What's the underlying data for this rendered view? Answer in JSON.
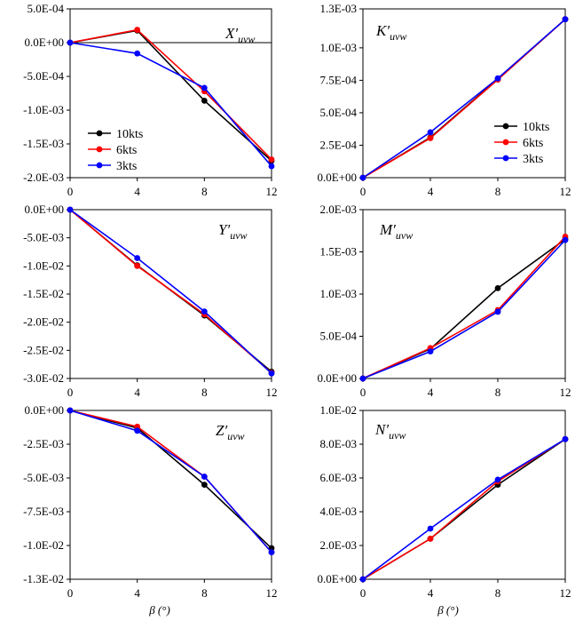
{
  "colors": {
    "10kts": "#000000",
    "6kts": "#ff0000",
    "3kts": "#0000ff"
  },
  "chart_data": [
    {
      "type": "line",
      "title": "X′",
      "title_sub": "uvw",
      "x": [
        0,
        4,
        8,
        12
      ],
      "xticks": [
        "0",
        "4",
        "8",
        "12"
      ],
      "ylim": [
        -0.002,
        0.0005
      ],
      "yticks": [
        0.0005,
        0.0,
        -0.0005,
        -0.001,
        -0.0015,
        -0.002
      ],
      "ytick_labels": [
        "5.0E-04",
        "0.0E+00",
        "-5.0E-04",
        "-1.0E-03",
        "-1.5E-03",
        "-2.0E-03"
      ],
      "legend": [
        "10kts",
        "6kts",
        "3kts"
      ],
      "legend_position": "lower-left",
      "series": [
        {
          "name": "10kts",
          "values": [
            0.0,
            0.00018,
            -0.00086,
            -0.00175
          ]
        },
        {
          "name": "6kts",
          "values": [
            0.0,
            0.00019,
            -0.00072,
            -0.00173
          ]
        },
        {
          "name": "3kts",
          "values": [
            0.0,
            -0.00016,
            -0.00067,
            -0.00183
          ]
        }
      ]
    },
    {
      "type": "line",
      "title": "K′",
      "title_sub": "uvw",
      "x": [
        0,
        4,
        8,
        12
      ],
      "xticks": [
        "0",
        "4",
        "8",
        "12"
      ],
      "ylim": [
        0.0,
        0.0013
      ],
      "yticks": [
        0.0013,
        0.001,
        0.00075,
        0.0005,
        0.00025,
        0.0
      ],
      "ytick_labels": [
        "1.3E-03",
        "1.0E-03",
        "7.5E-04",
        "5.0E-04",
        "2.5E-04",
        "0.0E+00"
      ],
      "legend": [
        "10kts",
        "6kts",
        "3kts"
      ],
      "legend_position": "lower-right",
      "series": [
        {
          "name": "10kts",
          "values": [
            0.0,
            0.00031,
            0.00076,
            0.00122
          ]
        },
        {
          "name": "6kts",
          "values": [
            0.0,
            0.000305,
            0.000755,
            0.00122
          ]
        },
        {
          "name": "3kts",
          "values": [
            0.0,
            0.00035,
            0.000765,
            0.00122
          ]
        }
      ]
    },
    {
      "type": "line",
      "title": "Y′",
      "title_sub": "uvw",
      "x": [
        0,
        4,
        8,
        12
      ],
      "xticks": [
        "0",
        "4",
        "8",
        "12"
      ],
      "ylim": [
        -0.03,
        0.0
      ],
      "yticks": [
        0.0,
        -0.005,
        -0.01,
        -0.015,
        -0.02,
        -0.025,
        -0.03
      ],
      "ytick_labels": [
        "0.0E+00",
        "-5.0E-03",
        "-1.0E-02",
        "-1.5E-02",
        "-2.0E-02",
        "-2.5E-02",
        "-3.0E-02"
      ],
      "series": [
        {
          "name": "10kts",
          "values": [
            0.0,
            -0.0099,
            -0.0188,
            -0.0288
          ]
        },
        {
          "name": "6kts",
          "values": [
            0.0,
            -0.01,
            -0.0186,
            -0.029
          ]
        },
        {
          "name": "3kts",
          "values": [
            0.0,
            -0.0086,
            -0.0181,
            -0.0291
          ]
        }
      ]
    },
    {
      "type": "line",
      "title": "M′",
      "title_sub": "uvw",
      "x": [
        0,
        4,
        8,
        12
      ],
      "xticks": [
        "0",
        "4",
        "8",
        "12"
      ],
      "ylim": [
        0.0,
        0.002
      ],
      "yticks": [
        0.002,
        0.0015,
        0.001,
        0.0005,
        0.0
      ],
      "ytick_labels": [
        "2.0E-03",
        "1.5E-03",
        "1.0E-03",
        "5.0E-04",
        "0.0E+00"
      ],
      "series": [
        {
          "name": "10kts",
          "values": [
            0.0,
            0.00035,
            0.00107,
            0.00165
          ]
        },
        {
          "name": "6kts",
          "values": [
            0.0,
            0.00036,
            0.00081,
            0.00168
          ]
        },
        {
          "name": "3kts",
          "values": [
            0.0,
            0.00032,
            0.00079,
            0.00164
          ]
        }
      ]
    },
    {
      "type": "line",
      "title": "Z′",
      "title_sub": "uvw",
      "x": [
        0,
        4,
        8,
        12
      ],
      "xticks": [
        "0",
        "4",
        "8",
        "12"
      ],
      "xlabel": "β (°)",
      "ylim": [
        -0.0125,
        0.0
      ],
      "yticks": [
        0.0,
        -0.0025,
        -0.005,
        -0.0075,
        -0.01,
        -0.0125
      ],
      "ytick_labels": [
        "0.0E+00",
        "-2.5E-03",
        "-5.0E-03",
        "-7.5E-03",
        "-1.0E-02",
        "-1.3E-02"
      ],
      "series": [
        {
          "name": "10kts",
          "values": [
            0.0,
            -0.0013,
            -0.0055,
            -0.0102
          ]
        },
        {
          "name": "6kts",
          "values": [
            0.0,
            -0.0012,
            -0.0049,
            -0.0105
          ]
        },
        {
          "name": "3kts",
          "values": [
            0.0,
            -0.0015,
            -0.0049,
            -0.0105
          ]
        }
      ]
    },
    {
      "type": "line",
      "title": "N′",
      "title_sub": "uvw",
      "x": [
        0,
        4,
        8,
        12
      ],
      "xticks": [
        "0",
        "4",
        "8",
        "12"
      ],
      "xlabel": "β (°)",
      "ylim": [
        0.0,
        0.01
      ],
      "yticks": [
        0.01,
        0.008,
        0.006,
        0.004,
        0.002,
        0.0
      ],
      "ytick_labels": [
        "1.0E-02",
        "8.0E-03",
        "6.0E-03",
        "4.0E-03",
        "2.0E-03",
        "0.0E+00"
      ],
      "series": [
        {
          "name": "10kts",
          "values": [
            0.0,
            0.0024,
            0.0056,
            0.0083
          ]
        },
        {
          "name": "6kts",
          "values": [
            0.0,
            0.0024,
            0.0058,
            0.0083
          ]
        },
        {
          "name": "3kts",
          "values": [
            0.0,
            0.003,
            0.0059,
            0.0083
          ]
        }
      ]
    }
  ]
}
